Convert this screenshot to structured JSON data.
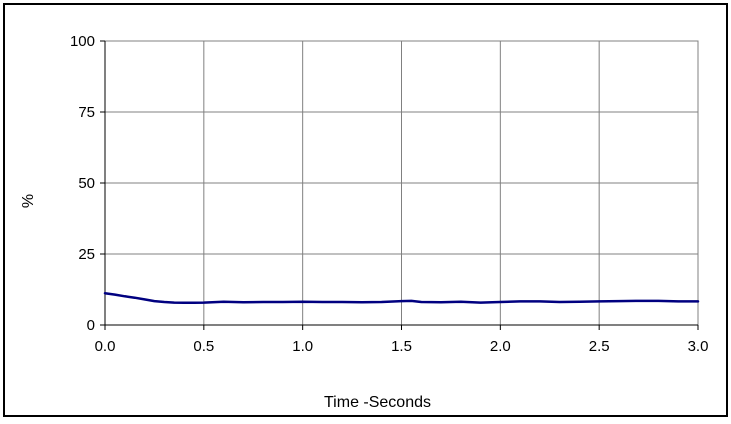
{
  "chart_data": {
    "type": "line",
    "title": "",
    "xlabel": "Time -Seconds",
    "ylabel": "%",
    "xlim": [
      0.0,
      3.0
    ],
    "ylim": [
      0,
      100
    ],
    "x_ticks": [
      "0.0",
      "0.5",
      "1.0",
      "1.5",
      "2.0",
      "2.5",
      "3.0"
    ],
    "y_ticks": [
      "0",
      "25",
      "50",
      "75",
      "100"
    ],
    "grid": true,
    "legend": "none",
    "series": [
      {
        "color": "#000080",
        "x": [
          0.0,
          0.05,
          0.1,
          0.15,
          0.2,
          0.25,
          0.3,
          0.35,
          0.4,
          0.45,
          0.5,
          0.6,
          0.7,
          0.8,
          0.9,
          1.0,
          1.1,
          1.2,
          1.3,
          1.4,
          1.5,
          1.55,
          1.6,
          1.7,
          1.8,
          1.9,
          2.0,
          2.1,
          2.2,
          2.3,
          2.4,
          2.5,
          2.6,
          2.7,
          2.8,
          2.9,
          3.0
        ],
        "y": [
          11.2,
          10.7,
          10.1,
          9.6,
          9.0,
          8.4,
          8.1,
          7.9,
          7.8,
          7.8,
          7.9,
          8.2,
          8.0,
          8.1,
          8.1,
          8.2,
          8.1,
          8.1,
          8.0,
          8.1,
          8.4,
          8.5,
          8.1,
          8.0,
          8.2,
          7.9,
          8.1,
          8.3,
          8.3,
          8.1,
          8.2,
          8.3,
          8.4,
          8.5,
          8.5,
          8.3,
          8.3
        ]
      }
    ]
  },
  "colors": {
    "line": "#000080",
    "grid": "#808080",
    "axis": "#000000",
    "background": "#ffffff"
  }
}
